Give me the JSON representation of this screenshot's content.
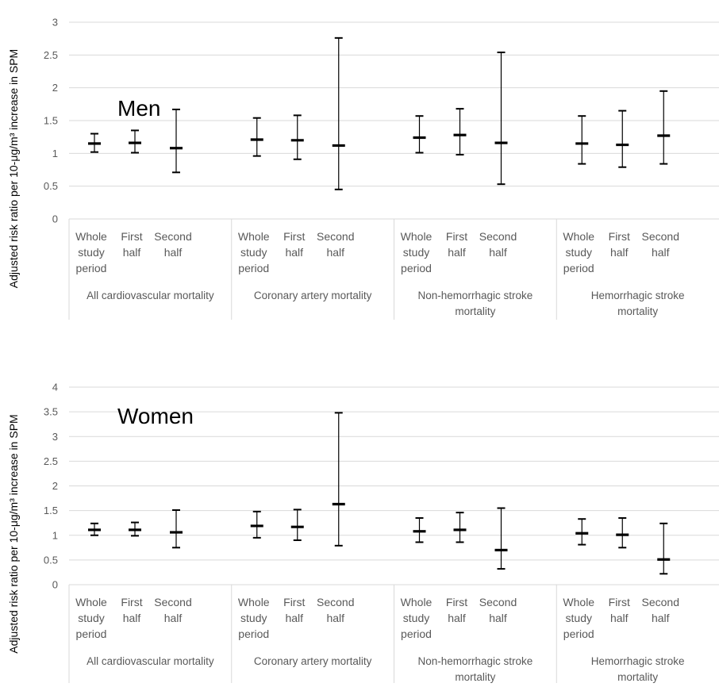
{
  "chart_data": [
    {
      "type": "error-bar",
      "title": "Men",
      "ylabel": "Adjusted risk ratio per 10-μg/m³ increase in SPM",
      "ylim": [
        0,
        3
      ],
      "yticks": [
        0,
        0.5,
        1,
        1.5,
        2,
        2.5,
        3
      ],
      "ytick_labels": [
        "0",
        "0.5",
        "1",
        "1.5",
        "2",
        "2.5",
        "3"
      ],
      "groups": [
        {
          "label": [
            "All cardiovascular mortality"
          ],
          "categories": [
            [
              "Whole",
              "study",
              "period"
            ],
            [
              "First",
              "half"
            ],
            [
              "Second",
              "half"
            ]
          ],
          "values": [
            1.15,
            1.16,
            1.08
          ],
          "lower": [
            1.02,
            1.01,
            0.71
          ],
          "upper": [
            1.3,
            1.35,
            1.67
          ]
        },
        {
          "label": [
            "Coronary artery mortality"
          ],
          "categories": [
            [
              "Whole",
              "study",
              "period"
            ],
            [
              "First",
              "half"
            ],
            [
              "Second",
              "half"
            ]
          ],
          "values": [
            1.21,
            1.2,
            1.12
          ],
          "lower": [
            0.96,
            0.91,
            0.45
          ],
          "upper": [
            1.54,
            1.58,
            2.76
          ]
        },
        {
          "label": [
            "Non-hemorrhagic stroke",
            "mortality"
          ],
          "categories": [
            [
              "Whole",
              "study",
              "period"
            ],
            [
              "First",
              "half"
            ],
            [
              "Second",
              "half"
            ]
          ],
          "values": [
            1.24,
            1.28,
            1.16
          ],
          "lower": [
            1.01,
            0.98,
            0.53
          ],
          "upper": [
            1.57,
            1.68,
            2.54
          ]
        },
        {
          "label": [
            "Hemorrhagic stroke",
            "mortality"
          ],
          "categories": [
            [
              "Whole",
              "study",
              "period"
            ],
            [
              "First",
              "half"
            ],
            [
              "Second",
              "half"
            ]
          ],
          "values": [
            1.15,
            1.13,
            1.27
          ],
          "lower": [
            0.84,
            0.79,
            0.84
          ],
          "upper": [
            1.57,
            1.65,
            1.95
          ]
        }
      ]
    },
    {
      "type": "error-bar",
      "title": "Women",
      "ylabel": "Adjusted risk ratio per 10-μg/m³ increase in SPM",
      "ylim": [
        0,
        4
      ],
      "yticks": [
        0,
        0.5,
        1,
        1.5,
        2,
        2.5,
        3,
        3.5,
        4
      ],
      "ytick_labels": [
        "0",
        "0.5",
        "1",
        "1.5",
        "2",
        "2.5",
        "3",
        "3.5",
        "4"
      ],
      "groups": [
        {
          "label": [
            "All cardiovascular mortality"
          ],
          "categories": [
            [
              "Whole",
              "study",
              "period"
            ],
            [
              "First",
              "half"
            ],
            [
              "Second",
              "half"
            ]
          ],
          "values": [
            1.11,
            1.11,
            1.06
          ],
          "lower": [
            1.0,
            0.99,
            0.75
          ],
          "upper": [
            1.24,
            1.26,
            1.51
          ]
        },
        {
          "label": [
            "Coronary artery mortality"
          ],
          "categories": [
            [
              "Whole",
              "study",
              "period"
            ],
            [
              "First",
              "half"
            ],
            [
              "Second",
              "half"
            ]
          ],
          "values": [
            1.19,
            1.17,
            1.63
          ],
          "lower": [
            0.95,
            0.9,
            0.79
          ],
          "upper": [
            1.48,
            1.52,
            3.48
          ]
        },
        {
          "label": [
            "Non-hemorrhagic stroke",
            "mortality"
          ],
          "categories": [
            [
              "Whole",
              "study",
              "period"
            ],
            [
              "First",
              "half"
            ],
            [
              "Second",
              "half"
            ]
          ],
          "values": [
            1.08,
            1.11,
            0.7
          ],
          "lower": [
            0.86,
            0.86,
            0.32
          ],
          "upper": [
            1.35,
            1.46,
            1.55
          ]
        },
        {
          "label": [
            "Hemorrhagic stroke",
            "mortality"
          ],
          "categories": [
            [
              "Whole",
              "study",
              "period"
            ],
            [
              "First",
              "half"
            ],
            [
              "Second",
              "half"
            ]
          ],
          "values": [
            1.04,
            1.01,
            0.51
          ],
          "lower": [
            0.81,
            0.75,
            0.22
          ],
          "upper": [
            1.33,
            1.35,
            1.24
          ]
        }
      ]
    }
  ]
}
